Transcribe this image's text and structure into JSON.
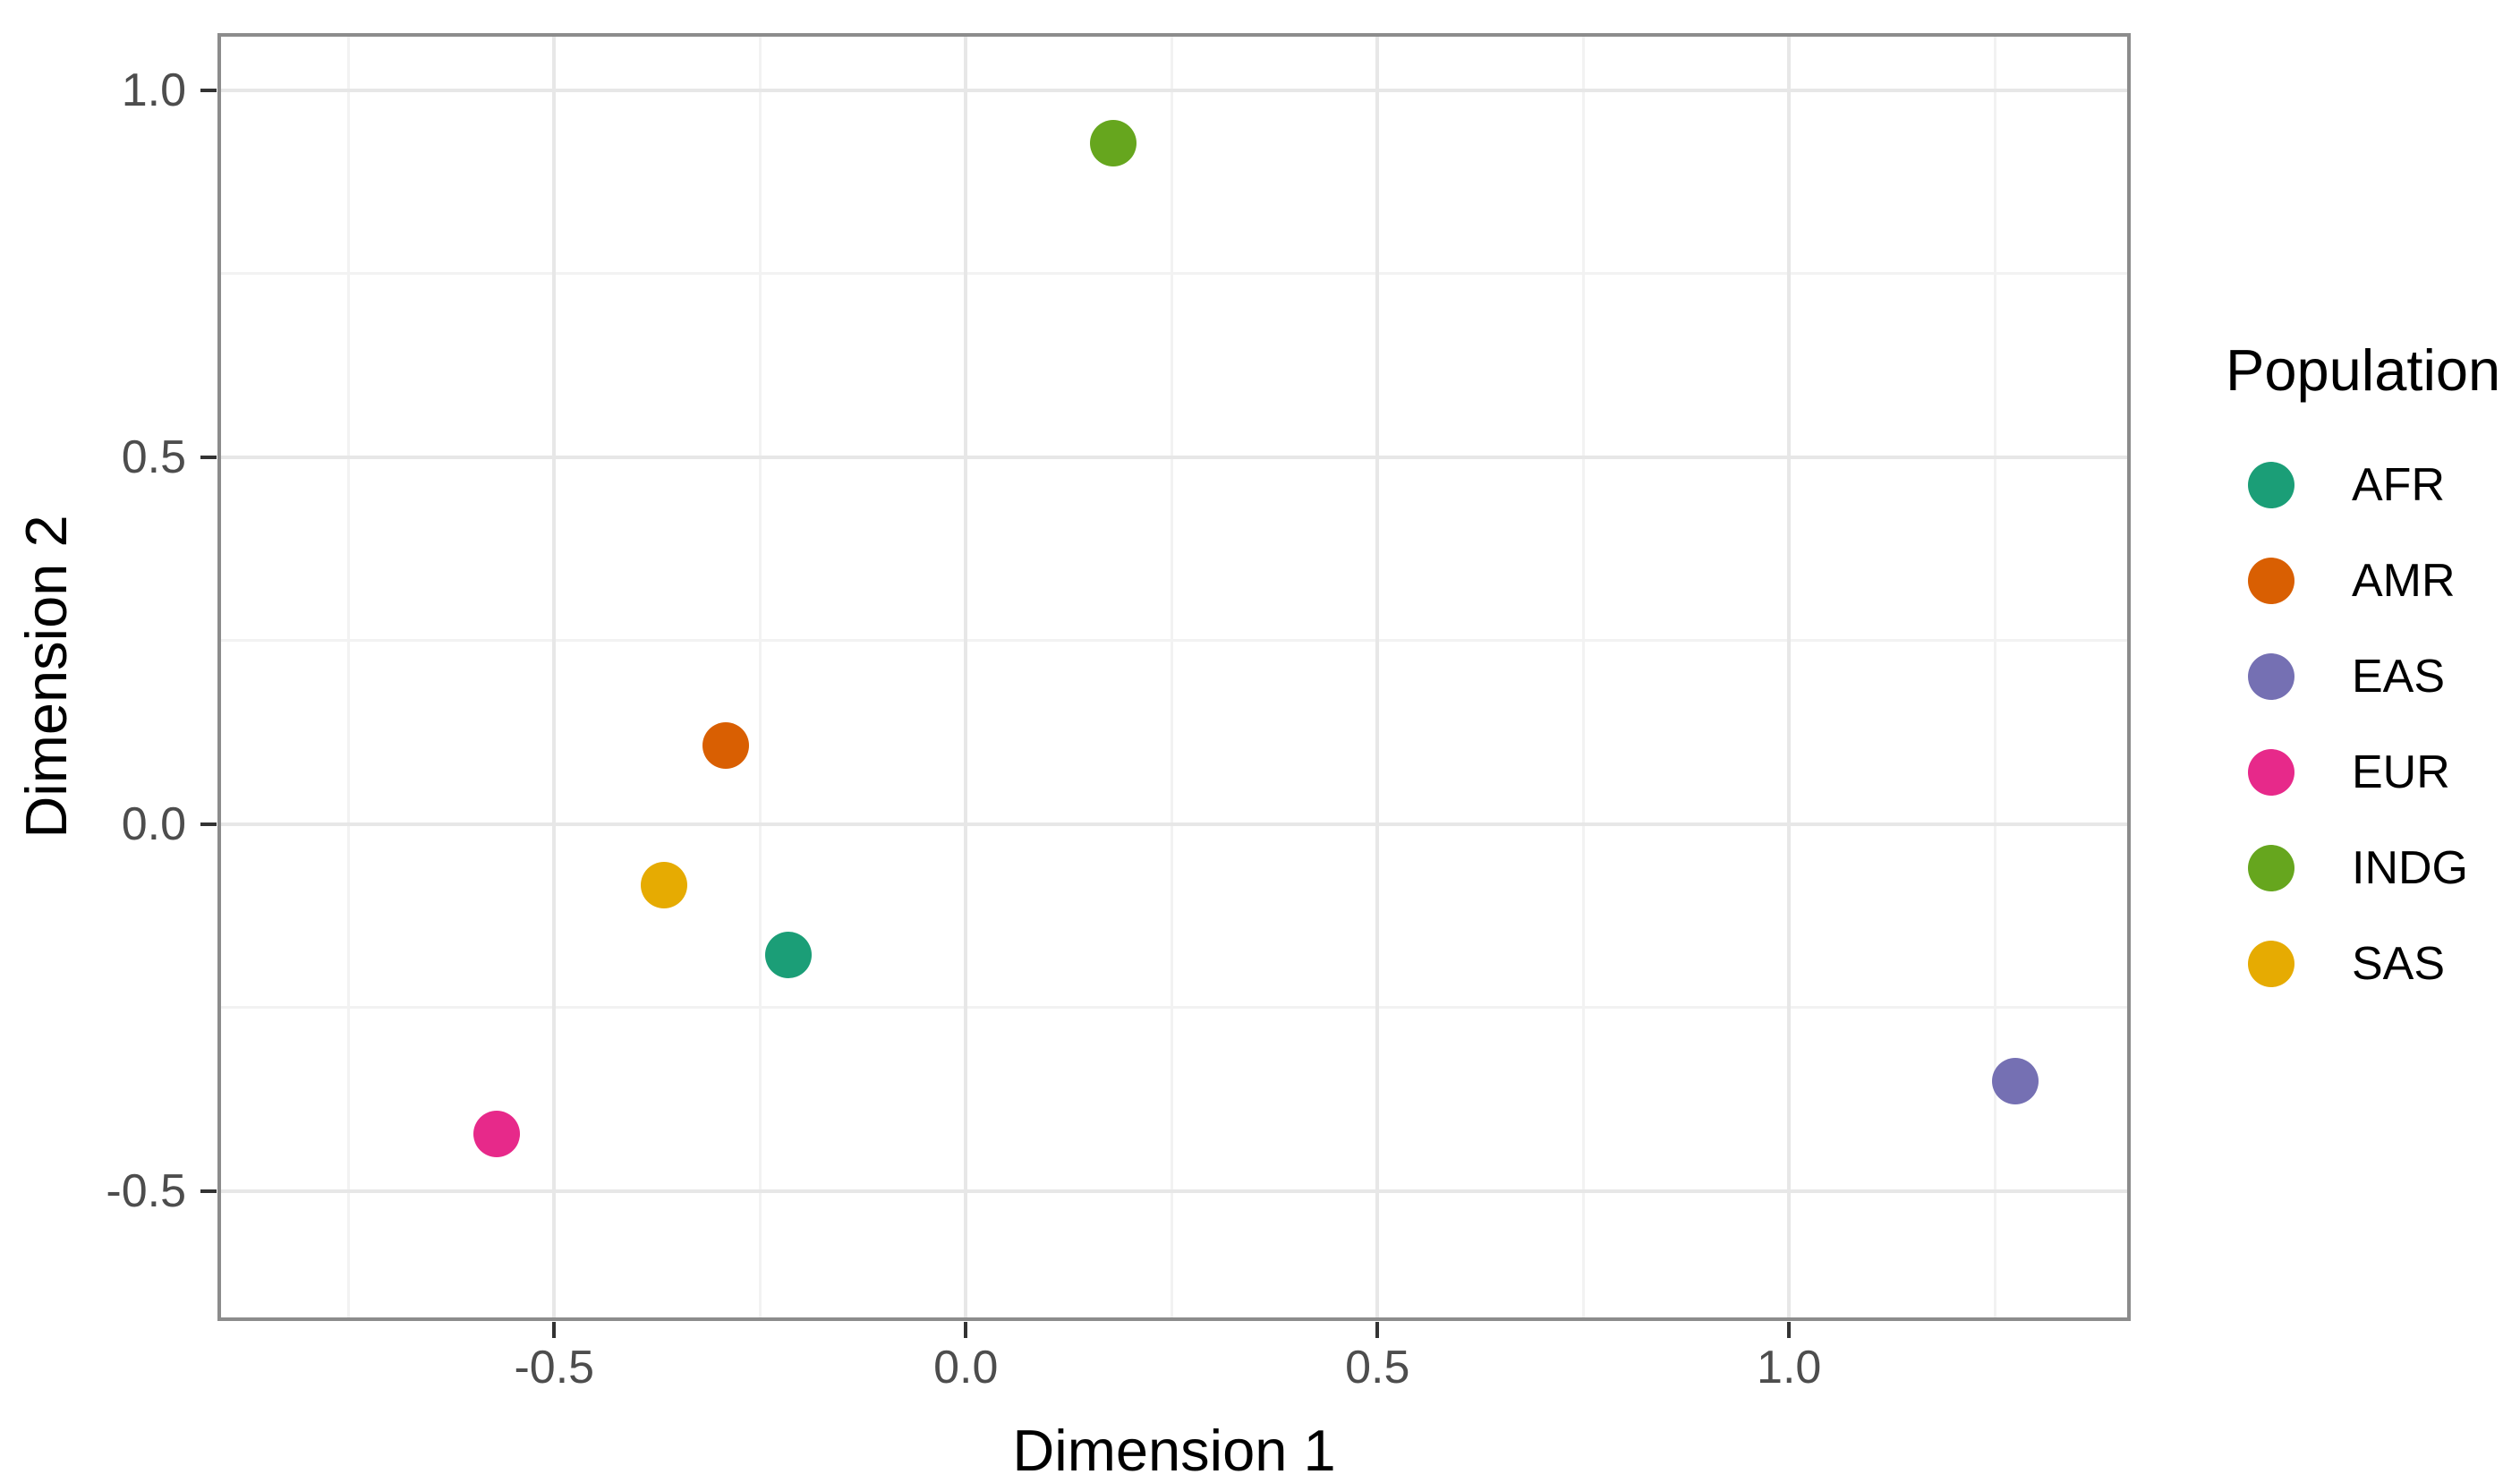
{
  "chart_data": {
    "type": "scatter",
    "title": "",
    "xlabel": "Dimension 1",
    "ylabel": "Dimension 2",
    "grid": true,
    "legend_position": "right",
    "x_axis": {
      "range": [
        -0.909,
        1.415
      ],
      "ticks": [
        -0.5,
        0.0,
        0.5,
        1.0
      ],
      "tick_labels": [
        "-0.5",
        "0.0",
        "0.5",
        "1.0"
      ],
      "minor_ticks": [
        -0.75,
        -0.25,
        0.25,
        0.75,
        1.25
      ]
    },
    "y_axis": {
      "range": [
        -0.677,
        1.078
      ],
      "ticks": [
        1.0,
        0.5,
        0.0,
        -0.5
      ],
      "tick_labels": [
        "1.0",
        "0.5",
        "0.0",
        "-0.5"
      ],
      "minor_ticks": [
        0.75,
        0.25,
        -0.25
      ]
    },
    "series": [
      {
        "name": "AFR",
        "color": "#1B9E77",
        "points": [
          {
            "x": -0.215,
            "y": -0.178
          }
        ]
      },
      {
        "name": "AMR",
        "color": "#D95F02",
        "points": [
          {
            "x": -0.292,
            "y": 0.107
          }
        ]
      },
      {
        "name": "EAS",
        "color": "#7570B3",
        "points": [
          {
            "x": 1.275,
            "y": -0.35
          }
        ]
      },
      {
        "name": "EUR",
        "color": "#E7298A",
        "points": [
          {
            "x": -0.57,
            "y": -0.422
          }
        ]
      },
      {
        "name": "INDG",
        "color": "#66A61E",
        "points": [
          {
            "x": 0.179,
            "y": 0.928
          }
        ]
      },
      {
        "name": "SAS",
        "color": "#E6AB02",
        "points": [
          {
            "x": -0.367,
            "y": -0.083
          }
        ]
      }
    ],
    "style": {
      "point_radius_px": 26,
      "major_grid_color": "#e7e7e7",
      "minor_grid_color": "#f2f2f2",
      "panel_border_color": "#8c8c8c",
      "tick_color": "#333333",
      "tick_label_color": "#4d4d4d",
      "background": "#ffffff"
    }
  },
  "legend": {
    "title": "Population",
    "entries": [
      {
        "label": "AFR",
        "color": "#1B9E77"
      },
      {
        "label": "AMR",
        "color": "#D95F02"
      },
      {
        "label": "EAS",
        "color": "#7570B3"
      },
      {
        "label": "EUR",
        "color": "#E7298A"
      },
      {
        "label": "INDG",
        "color": "#66A61E"
      },
      {
        "label": "SAS",
        "color": "#E6AB02"
      }
    ]
  }
}
